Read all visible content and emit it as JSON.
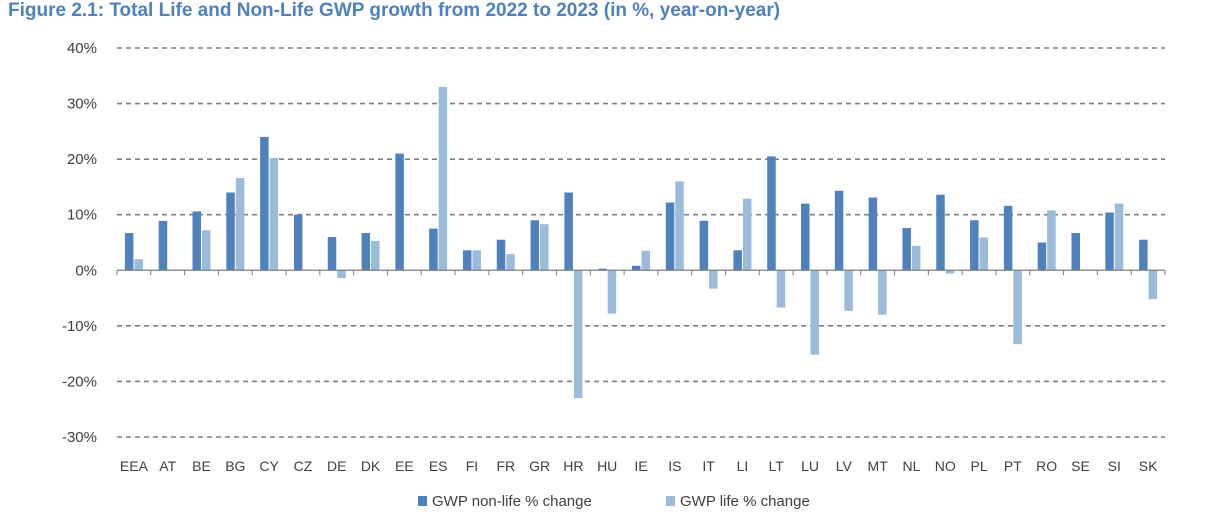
{
  "chart_data": {
    "type": "bar",
    "title": "Figure 2.1: Total Life and Non-Life GWP growth from 2022 to 2023 (in %, year-on-year)",
    "xlabel": "",
    "ylabel": "",
    "ylim": [
      -30,
      40
    ],
    "yticks": [
      40,
      30,
      20,
      10,
      0,
      -10,
      -20,
      -30
    ],
    "ytick_labels": [
      "40%",
      "30%",
      "20%",
      "10%",
      "0%",
      "-10%",
      "-20%",
      "-30%"
    ],
    "grid": true,
    "legend_position": "bottom",
    "categories": [
      "EEA",
      "AT",
      "BE",
      "BG",
      "CY",
      "CZ",
      "DE",
      "DK",
      "EE",
      "ES",
      "FI",
      "FR",
      "GR",
      "HR",
      "HU",
      "IE",
      "IS",
      "IT",
      "LI",
      "LT",
      "LU",
      "LV",
      "MT",
      "NL",
      "NO",
      "PL",
      "PT",
      "RO",
      "SE",
      "SI",
      "SK"
    ],
    "series": [
      {
        "name": "GWP non-life % change",
        "color": "#4f81bd",
        "values": [
          6.7,
          8.9,
          10.6,
          14.0,
          24.0,
          10.0,
          6.0,
          6.7,
          21.0,
          7.5,
          3.6,
          5.5,
          9.0,
          14.0,
          0.3,
          0.8,
          12.2,
          8.9,
          3.6,
          20.5,
          12.0,
          14.3,
          13.1,
          7.6,
          13.6,
          9.0,
          11.6,
          5.0,
          6.7,
          10.4,
          5.5
        ]
      },
      {
        "name": "GWP life % change",
        "color": "#9bbbdb",
        "values": [
          2.0,
          0.0,
          7.2,
          16.6,
          20.2,
          0.0,
          -1.4,
          5.3,
          0.0,
          33.0,
          3.6,
          2.9,
          8.3,
          -23.0,
          -7.8,
          3.5,
          16.0,
          -3.3,
          12.9,
          -6.7,
          -15.2,
          -7.3,
          -8.0,
          4.4,
          -0.6,
          5.9,
          -13.3,
          10.8,
          0.0,
          12.0,
          -5.2
        ]
      }
    ]
  }
}
